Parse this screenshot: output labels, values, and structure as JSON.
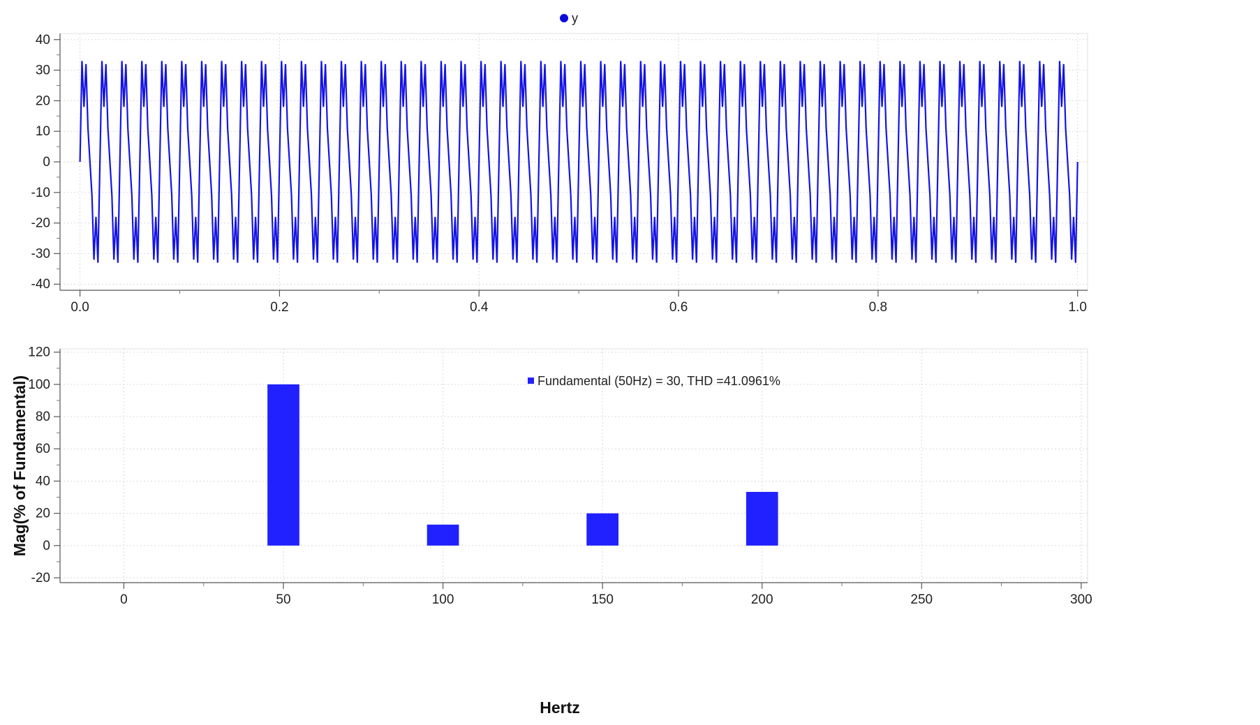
{
  "colors": {
    "series_line": "#1414e6",
    "bar_fill": "#2121ff",
    "legend_line_marker": "#0b0bdc",
    "legend_bar_marker": "#2121ff"
  },
  "chart_data": [
    {
      "type": "line",
      "legend": [
        {
          "name": "y",
          "marker": "circle"
        }
      ],
      "legend_placement": "top-center",
      "xlabel": "",
      "ylabel": "",
      "xlim": [
        -0.02,
        1.01
      ],
      "ylim": [
        -42,
        42
      ],
      "x_ticks": [
        0.0,
        0.2,
        0.4,
        0.6,
        0.8,
        1.0
      ],
      "x_tick_labels": [
        "0.0",
        "0.2",
        "0.4",
        "0.6",
        "0.8",
        "1.0"
      ],
      "y_ticks": [
        40,
        30,
        20,
        10,
        0,
        -10,
        -20,
        -30,
        -40
      ],
      "y_tick_labels": [
        "40",
        "30",
        "20",
        "10",
        "0",
        "-10",
        "-20",
        "-30",
        "-40"
      ],
      "grid": true,
      "series": [
        {
          "name": "y",
          "period": 0.02,
          "x_range": [
            0,
            1
          ],
          "one_period_x": [
            0,
            0.002,
            0.004,
            0.006,
            0.008,
            0.01,
            0.012,
            0.014,
            0.016,
            0.018,
            0.02
          ],
          "one_period_y": [
            0,
            33,
            18,
            32,
            11,
            0,
            -11,
            -32,
            -18,
            -33,
            0
          ]
        }
      ]
    },
    {
      "type": "bar",
      "legend": [
        {
          "name": "Fundamental (50Hz) = 30, THD =41.0961%",
          "marker": "square"
        }
      ],
      "legend_placement": "top-center",
      "xlabel": "Hertz",
      "ylabel": "Mag(% of Fundamental)",
      "xlim": [
        -20,
        302
      ],
      "ylim": [
        -23,
        122
      ],
      "x_ticks": [
        0,
        50,
        100,
        150,
        200,
        250,
        300
      ],
      "x_tick_labels": [
        "0",
        "50",
        "100",
        "150",
        "200",
        "250",
        "300"
      ],
      "y_ticks": [
        120,
        100,
        80,
        60,
        40,
        20,
        0,
        -20
      ],
      "y_tick_labels": [
        "120",
        "100",
        "80",
        "60",
        "40",
        "20",
        "0",
        "-20"
      ],
      "grid": true,
      "bar_width": 10,
      "x": [
        50,
        100,
        150,
        200
      ],
      "values": [
        100,
        13,
        20,
        33.3
      ]
    }
  ]
}
